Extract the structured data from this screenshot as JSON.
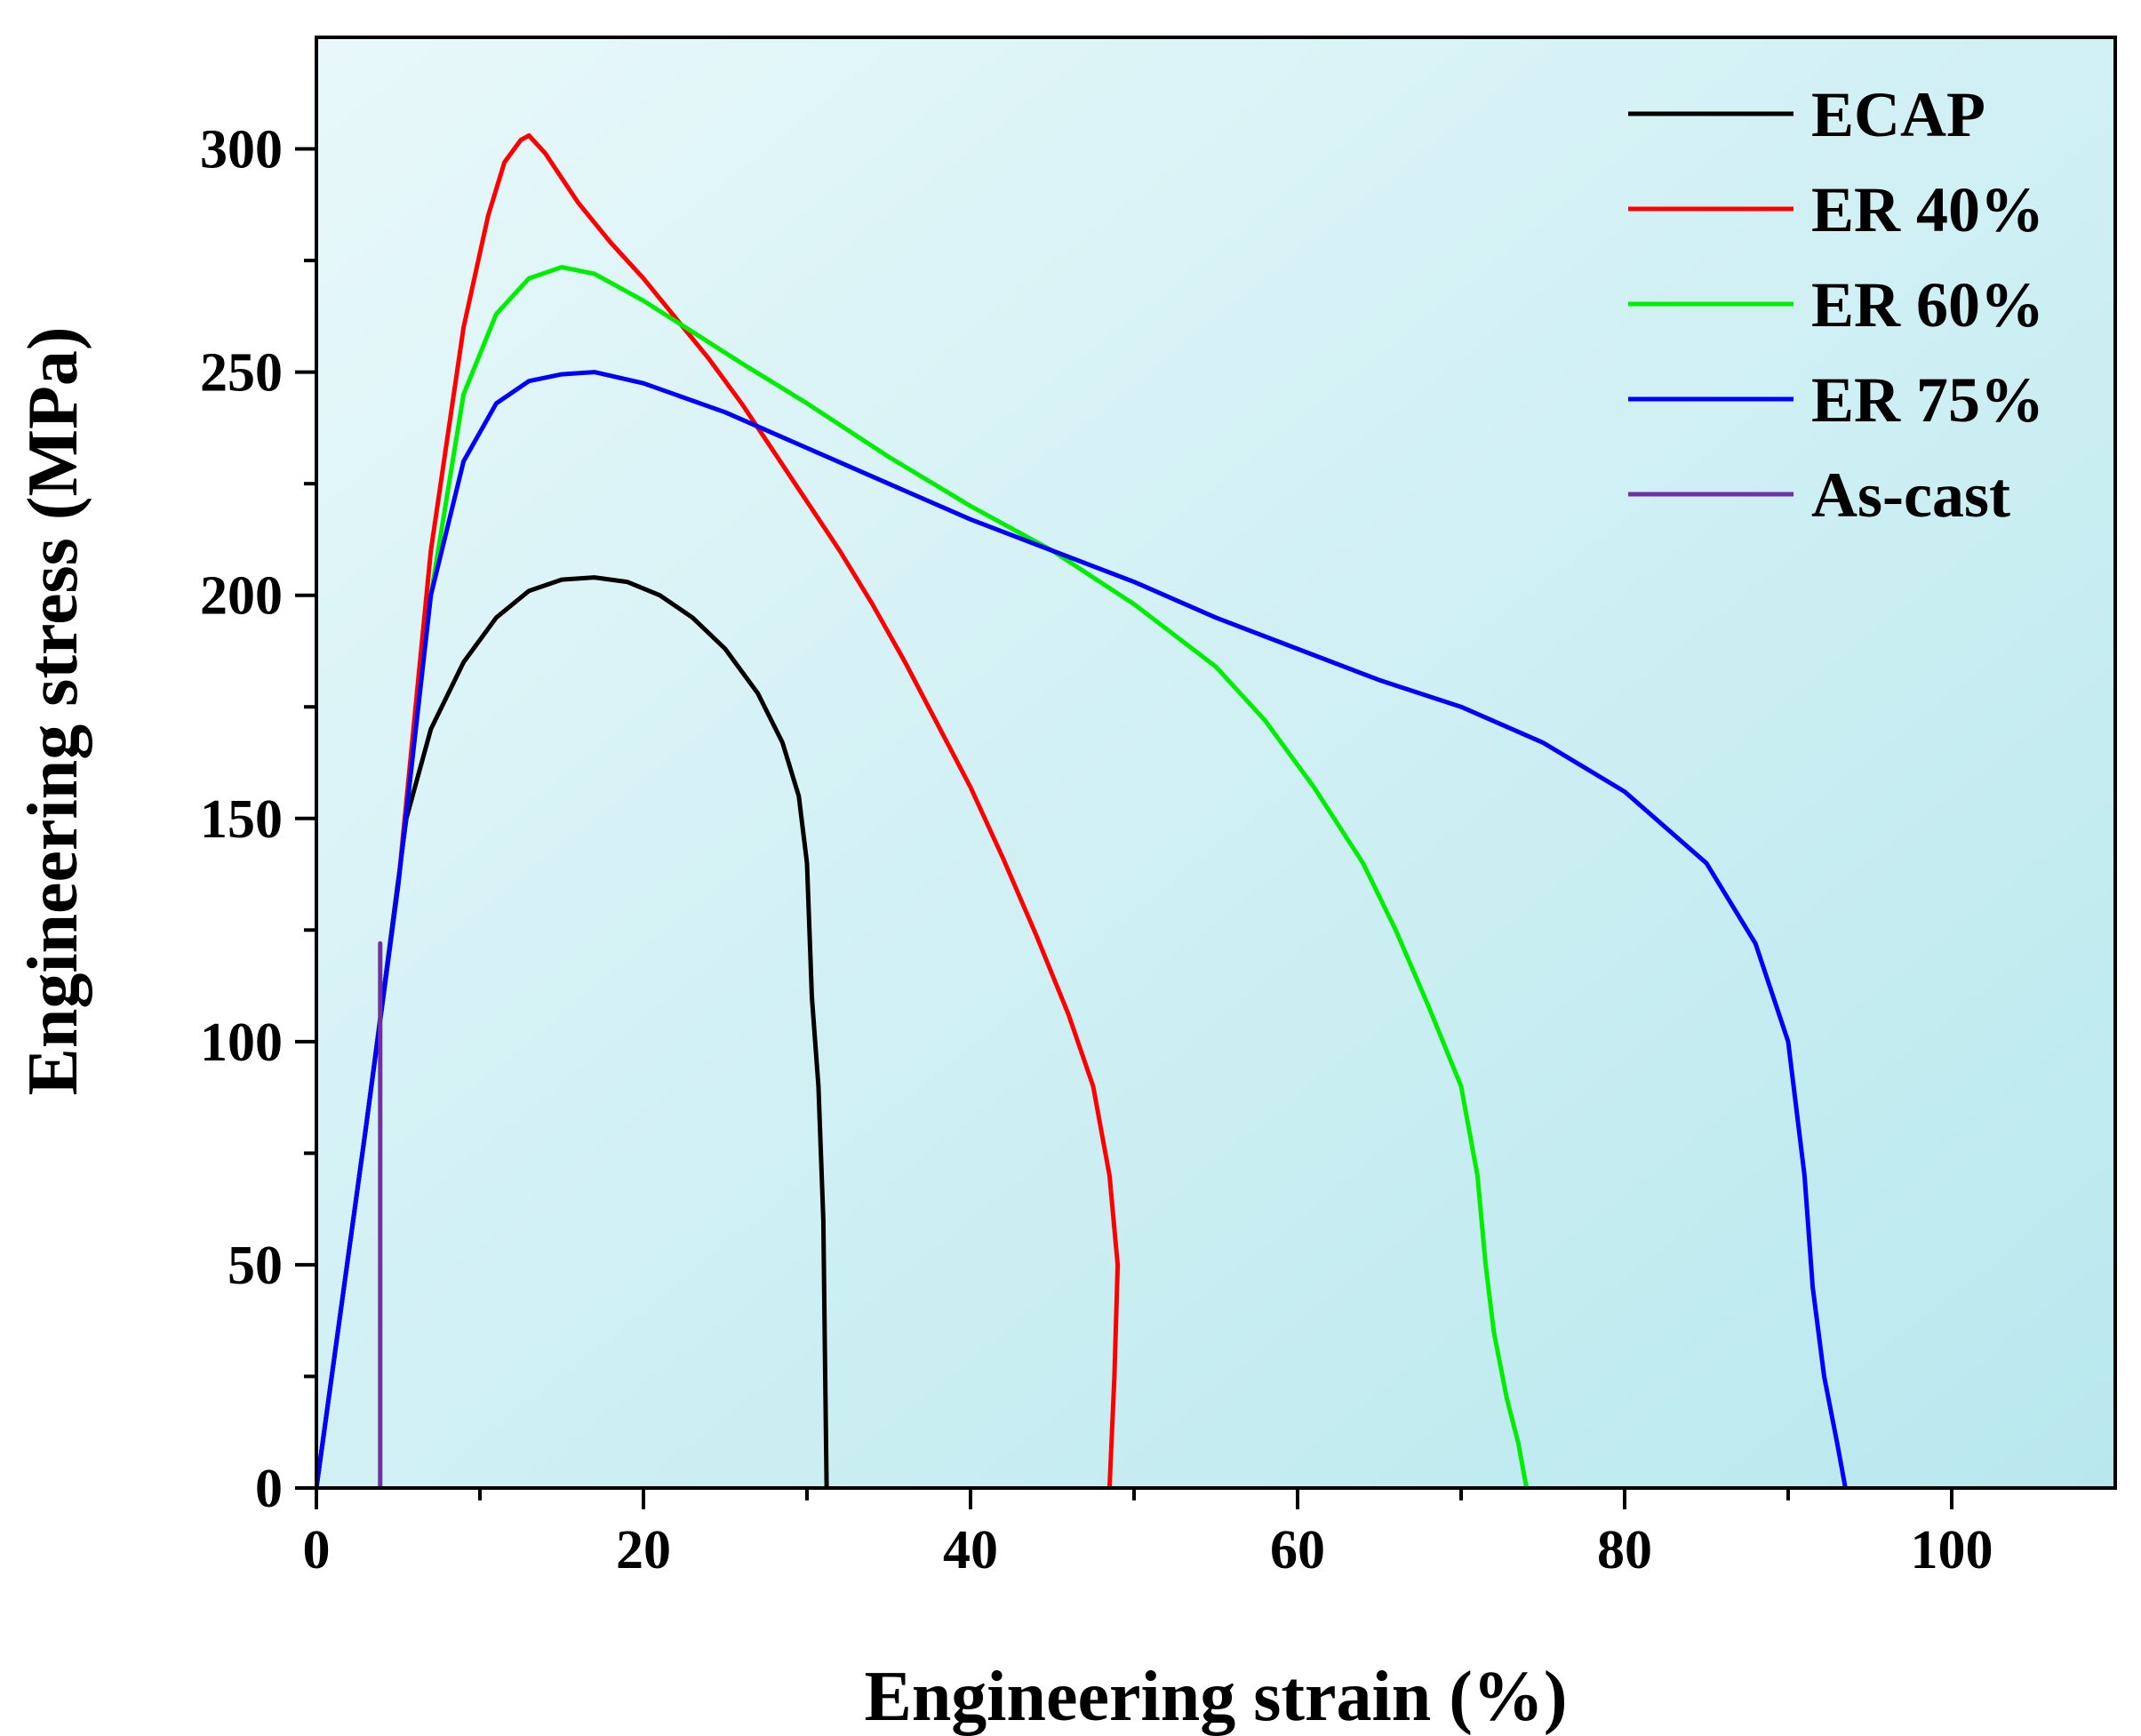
{
  "chart_data": {
    "type": "line",
    "title": "",
    "xlabel": "Engineering strain (%)",
    "ylabel": "Engineering stress (MPa)",
    "xlim": [
      0,
      110
    ],
    "ylim": [
      0,
      325
    ],
    "x_ticks": [
      0,
      20,
      40,
      60,
      80,
      100
    ],
    "y_ticks": [
      0,
      50,
      100,
      150,
      200,
      250,
      300
    ],
    "x_minor_ticks": [
      10,
      30,
      50,
      70,
      90
    ],
    "y_minor_ticks": [
      25,
      75,
      125,
      175,
      225,
      275
    ],
    "grid": false,
    "legend_position": "top-right",
    "background_gradient": [
      "#e8f8fa",
      "#b8e8ee"
    ],
    "series": [
      {
        "name": "ECAP",
        "color": "#000000",
        "points": [
          [
            0,
            0
          ],
          [
            3,
            80
          ],
          [
            5.5,
            150
          ],
          [
            7,
            170
          ],
          [
            9,
            185
          ],
          [
            11,
            195
          ],
          [
            13,
            201
          ],
          [
            15,
            203.5
          ],
          [
            17,
            204
          ],
          [
            19,
            203
          ],
          [
            21,
            200
          ],
          [
            23,
            195
          ],
          [
            25,
            188
          ],
          [
            27,
            178
          ],
          [
            28.5,
            167
          ],
          [
            29.5,
            155
          ],
          [
            30,
            140
          ],
          [
            30.3,
            110
          ],
          [
            30.7,
            90
          ],
          [
            31,
            60
          ],
          [
            31.1,
            30
          ],
          [
            31.2,
            0
          ]
        ]
      },
      {
        "name": "ER 40%",
        "color": "#ff0000",
        "points": [
          [
            0,
            0
          ],
          [
            3,
            80
          ],
          [
            5,
            135
          ],
          [
            7,
            210
          ],
          [
            9,
            260
          ],
          [
            10.5,
            285
          ],
          [
            11.5,
            297
          ],
          [
            12.5,
            302
          ],
          [
            13,
            303
          ],
          [
            14,
            299
          ],
          [
            16,
            288
          ],
          [
            18,
            279
          ],
          [
            20,
            271
          ],
          [
            22,
            262
          ],
          [
            24,
            253
          ],
          [
            26,
            243
          ],
          [
            28,
            232
          ],
          [
            30,
            221
          ],
          [
            32,
            210
          ],
          [
            34,
            198
          ],
          [
            36,
            185
          ],
          [
            38,
            171
          ],
          [
            40,
            157
          ],
          [
            42,
            141
          ],
          [
            44,
            124
          ],
          [
            46,
            106
          ],
          [
            47.5,
            90
          ],
          [
            48.5,
            70
          ],
          [
            49,
            50
          ],
          [
            48.8,
            25
          ],
          [
            48.5,
            0
          ]
        ]
      },
      {
        "name": "ER 60%",
        "color": "#00ee00",
        "points": [
          [
            0,
            0
          ],
          [
            3,
            80
          ],
          [
            5,
            135
          ],
          [
            7,
            200
          ],
          [
            9,
            245
          ],
          [
            11,
            263
          ],
          [
            13,
            271
          ],
          [
            15,
            273.5
          ],
          [
            17,
            272
          ],
          [
            20,
            266
          ],
          [
            23,
            259
          ],
          [
            26,
            252
          ],
          [
            30,
            243
          ],
          [
            35,
            231
          ],
          [
            40,
            220
          ],
          [
            45,
            210
          ],
          [
            50,
            198
          ],
          [
            55,
            184
          ],
          [
            58,
            172
          ],
          [
            61,
            157
          ],
          [
            64,
            140
          ],
          [
            66,
            125
          ],
          [
            68,
            108
          ],
          [
            70,
            90
          ],
          [
            71,
            70
          ],
          [
            71.5,
            50
          ],
          [
            72,
            35
          ],
          [
            72.8,
            20
          ],
          [
            73.5,
            10
          ],
          [
            74,
            0
          ]
        ]
      },
      {
        "name": "ER 75%",
        "color": "#0000ff",
        "points": [
          [
            0,
            0
          ],
          [
            3,
            80
          ],
          [
            5,
            135
          ],
          [
            7,
            200
          ],
          [
            9,
            230
          ],
          [
            11,
            243
          ],
          [
            13,
            248
          ],
          [
            15,
            249.5
          ],
          [
            17,
            250
          ],
          [
            20,
            247.5
          ],
          [
            25,
            241
          ],
          [
            30,
            233
          ],
          [
            35,
            225
          ],
          [
            40,
            217
          ],
          [
            45,
            210
          ],
          [
            50,
            203
          ],
          [
            55,
            195
          ],
          [
            60,
            188
          ],
          [
            65,
            181
          ],
          [
            70,
            175
          ],
          [
            75,
            167
          ],
          [
            80,
            156
          ],
          [
            85,
            140
          ],
          [
            88,
            122
          ],
          [
            90,
            100
          ],
          [
            91,
            70
          ],
          [
            91.5,
            45
          ],
          [
            92.2,
            25
          ],
          [
            93,
            10
          ],
          [
            93.5,
            0
          ]
        ]
      },
      {
        "name": "As-cast",
        "color": "#7030a0",
        "points": [
          [
            3.9,
            0
          ],
          [
            3.9,
            122
          ]
        ]
      }
    ]
  }
}
